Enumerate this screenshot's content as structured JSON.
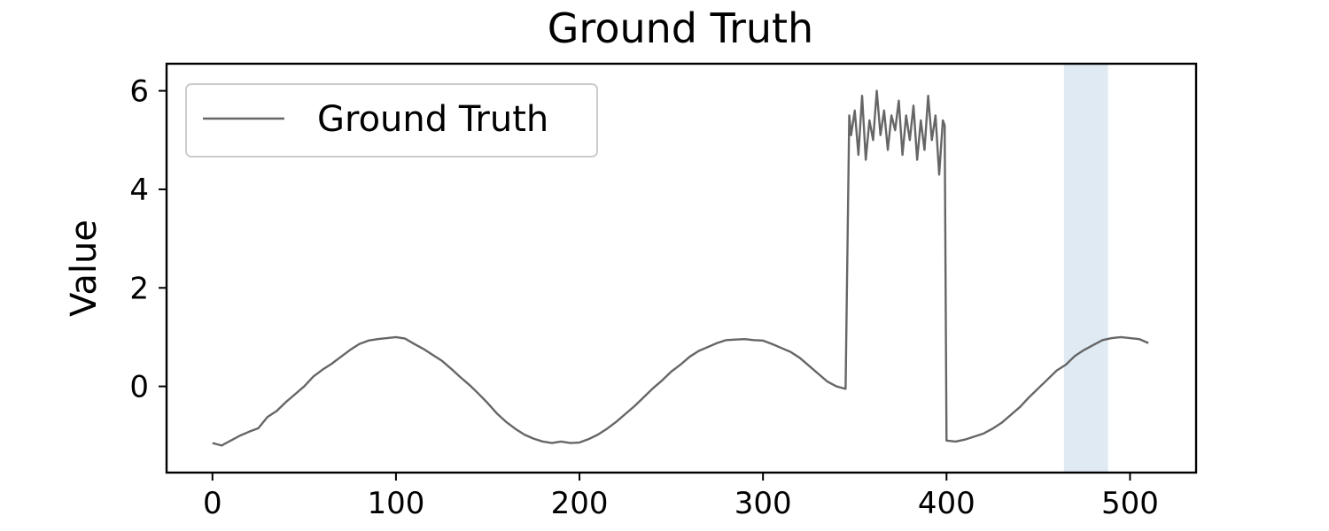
{
  "chart_data": {
    "type": "line",
    "title": "Ground Truth",
    "xlabel": "",
    "ylabel": "Value",
    "xlim": [
      -25,
      536
    ],
    "ylim": [
      -1.75,
      6.55
    ],
    "xticks": [
      0,
      100,
      200,
      300,
      400,
      500
    ],
    "yticks": [
      0,
      2,
      4,
      6
    ],
    "grid": false,
    "legend_position": "upper-left",
    "highlight_span": {
      "x_start": 464,
      "x_end": 488,
      "color": "#c6d8ea"
    },
    "series": [
      {
        "name": "Ground Truth",
        "color": "#666666",
        "x": [
          0,
          5,
          10,
          15,
          20,
          25,
          30,
          35,
          40,
          45,
          50,
          55,
          60,
          65,
          70,
          75,
          80,
          85,
          90,
          95,
          100,
          105,
          110,
          115,
          120,
          125,
          130,
          135,
          140,
          145,
          150,
          155,
          160,
          165,
          170,
          175,
          180,
          185,
          190,
          195,
          200,
          205,
          210,
          215,
          220,
          225,
          230,
          235,
          240,
          245,
          250,
          255,
          260,
          265,
          270,
          275,
          280,
          285,
          290,
          295,
          300,
          305,
          310,
          315,
          320,
          325,
          330,
          335,
          340,
          345,
          347,
          348,
          350,
          352,
          354,
          356,
          358,
          360,
          362,
          364,
          366,
          368,
          370,
          372,
          374,
          376,
          378,
          380,
          382,
          384,
          386,
          388,
          390,
          392,
          394,
          396,
          398,
          399,
          400,
          405,
          410,
          415,
          420,
          425,
          430,
          435,
          440,
          445,
          450,
          455,
          460,
          465,
          470,
          475,
          480,
          485,
          490,
          495,
          500,
          505,
          510
        ],
        "y": [
          -1.15,
          -1.2,
          -1.1,
          -1.0,
          -0.92,
          -0.85,
          -0.62,
          -0.5,
          -0.32,
          -0.16,
          0.0,
          0.2,
          0.34,
          0.46,
          0.6,
          0.74,
          0.86,
          0.93,
          0.96,
          0.98,
          1.0,
          0.97,
          0.86,
          0.76,
          0.64,
          0.52,
          0.36,
          0.19,
          0.03,
          -0.15,
          -0.34,
          -0.55,
          -0.72,
          -0.86,
          -0.98,
          -1.06,
          -1.12,
          -1.15,
          -1.12,
          -1.15,
          -1.14,
          -1.07,
          -0.98,
          -0.86,
          -0.72,
          -0.56,
          -0.4,
          -0.22,
          -0.04,
          0.12,
          0.3,
          0.44,
          0.6,
          0.72,
          0.8,
          0.88,
          0.94,
          0.95,
          0.96,
          0.94,
          0.93,
          0.86,
          0.78,
          0.7,
          0.58,
          0.42,
          0.26,
          0.1,
          0.0,
          -0.05,
          5.5,
          5.1,
          5.6,
          4.7,
          5.9,
          4.6,
          5.4,
          5.0,
          6.0,
          5.1,
          5.6,
          4.8,
          5.5,
          5.2,
          5.8,
          4.7,
          5.5,
          5.0,
          5.7,
          4.6,
          5.4,
          4.8,
          5.9,
          5.0,
          5.5,
          4.3,
          5.4,
          5.3,
          -1.1,
          -1.12,
          -1.08,
          -1.02,
          -0.96,
          -0.86,
          -0.74,
          -0.58,
          -0.42,
          -0.22,
          -0.04,
          0.14,
          0.32,
          0.44,
          0.62,
          0.74,
          0.84,
          0.94,
          0.98,
          1.0,
          0.98,
          0.96,
          0.88
        ]
      }
    ]
  }
}
